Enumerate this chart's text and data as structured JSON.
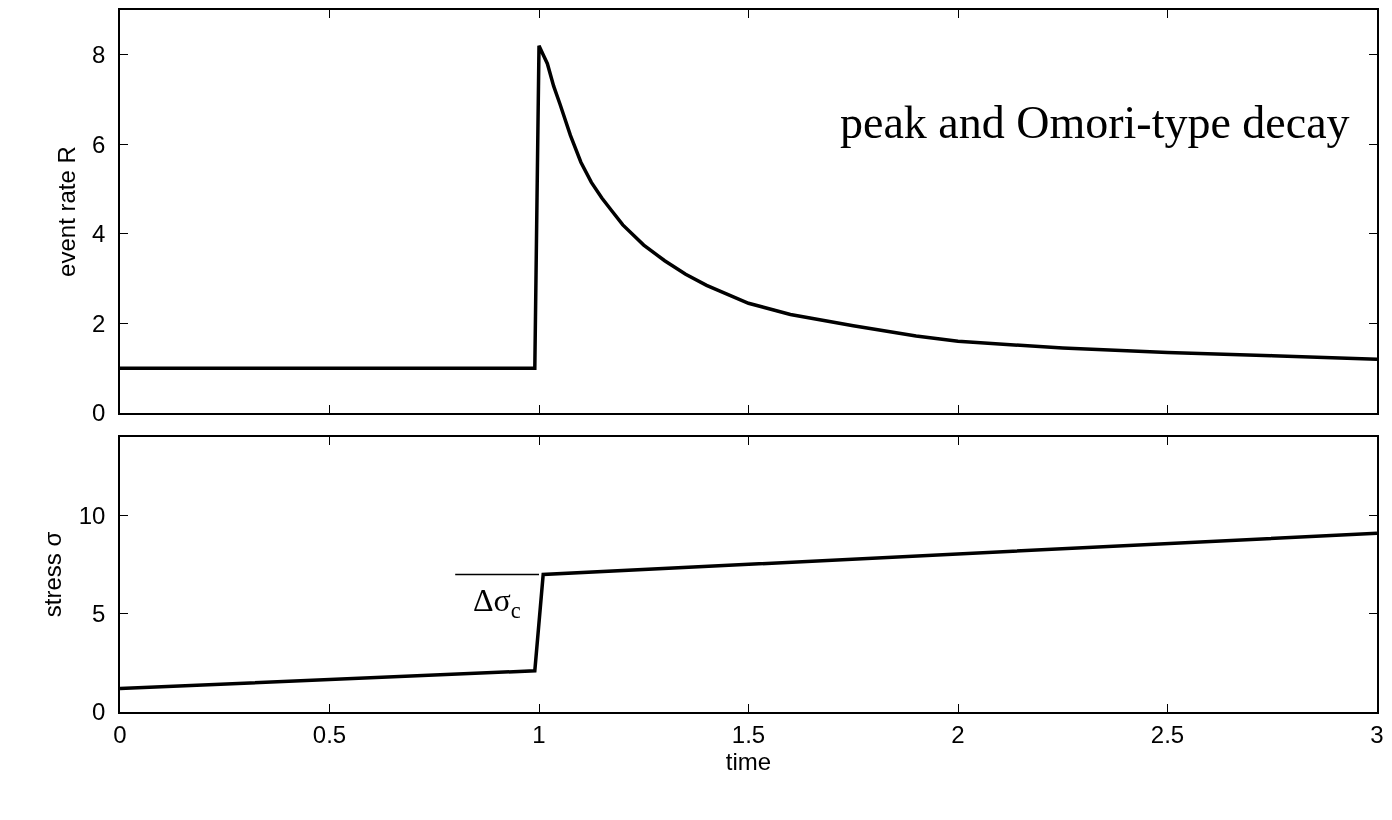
{
  "chart_data": [
    {
      "type": "line",
      "ylabel": "event rate R",
      "xlim": [
        0,
        3
      ],
      "xticks": [
        0,
        0.5,
        1,
        1.5,
        2,
        2.5,
        3
      ],
      "ylim": [
        0,
        9
      ],
      "yticks": [
        0,
        2,
        4,
        6,
        8
      ],
      "tick_labels": "y",
      "grid": false,
      "marker": "none",
      "line_style": "solid",
      "x": [
        0,
        0.99,
        1.0,
        1.01,
        1.02,
        1.035,
        1.05,
        1.075,
        1.1,
        1.125,
        1.15,
        1.175,
        1.2,
        1.25,
        1.3,
        1.35,
        1.4,
        1.45,
        1.5,
        1.6,
        1.75,
        1.9,
        2.0,
        2.25,
        2.5,
        2.75,
        3.0
      ],
      "series": [
        {
          "color": "#000000",
          "values": [
            1,
            1,
            8.2,
            8.0,
            7.8,
            7.3,
            6.9,
            6.2,
            5.6,
            5.15,
            4.8,
            4.5,
            4.2,
            3.75,
            3.4,
            3.1,
            2.85,
            2.65,
            2.45,
            2.2,
            1.95,
            1.72,
            1.6,
            1.45,
            1.35,
            1.28,
            1.2
          ]
        }
      ],
      "annotations": [
        "peak and Omori-type decay"
      ]
    },
    {
      "type": "line",
      "xlabel": "time",
      "ylabel": "stress σ",
      "xlim": [
        0,
        3
      ],
      "xticks": [
        0,
        0.5,
        1,
        1.5,
        2,
        2.5,
        3
      ],
      "ylim": [
        0,
        14
      ],
      "yticks": [
        0,
        5,
        10
      ],
      "grid": false,
      "marker": "none",
      "line_style": "solid",
      "x": [
        0,
        0.99,
        1.01,
        3.0
      ],
      "series": [
        {
          "color": "#000000",
          "values": [
            1.2,
            2.1,
            7.0,
            9.1
          ]
        },
        {
          "color": "#000000",
          "x": [
            0.8,
            1.0
          ],
          "values": [
            7.0,
            7.0
          ]
        }
      ],
      "annotations": [
        "Δσ$_{c}$"
      ]
    }
  ]
}
